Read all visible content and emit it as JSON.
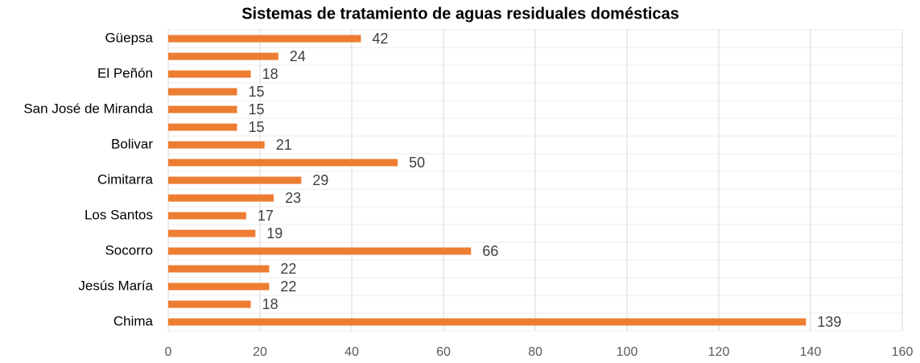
{
  "chart_data": {
    "type": "bar",
    "orientation": "horizontal",
    "title": "Sistemas de tratamiento de aguas residuales domésticas",
    "categories": [
      "Güepsa",
      null,
      "El Peñón",
      null,
      "San José de Miranda",
      null,
      "Bolivar",
      null,
      "Cimitarra",
      null,
      "Los Santos",
      null,
      "Socorro",
      null,
      "Jesús María",
      null,
      "Chima"
    ],
    "values": [
      42,
      24,
      18,
      15,
      15,
      15,
      21,
      50,
      29,
      23,
      17,
      19,
      66,
      22,
      22,
      18,
      139
    ],
    "color": "#ed7d31",
    "xlim": [
      0,
      160
    ],
    "xticks": [
      0,
      20,
      40,
      60,
      80,
      100,
      120,
      140,
      160
    ],
    "grid": true
  }
}
